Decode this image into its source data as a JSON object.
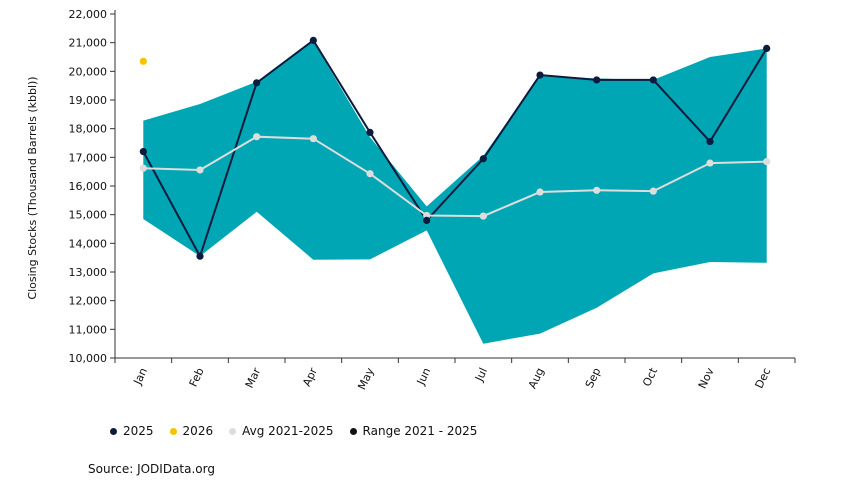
{
  "chart_data": {
    "type": "line",
    "title": "",
    "ylabel": "Closing Stocks (Thousand Barrels (kbbl))",
    "xlabel": "",
    "ylim": [
      10000,
      22000
    ],
    "yticks": [
      10000,
      11000,
      12000,
      13000,
      14000,
      15000,
      16000,
      17000,
      18000,
      19000,
      20000,
      21000,
      22000
    ],
    "ytick_labels": [
      "10,000",
      "11,000",
      "12,000",
      "13,000",
      "14,000",
      "15,000",
      "16,000",
      "17,000",
      "18,000",
      "19,000",
      "20,000",
      "21,000",
      "22,000"
    ],
    "categories": [
      "Jan",
      "Feb",
      "Mar",
      "Apr",
      "May",
      "Jun",
      "Jul",
      "Aug",
      "Sep",
      "Oct",
      "Nov",
      "Dec"
    ],
    "range": {
      "name": "Range 2021 - 2025",
      "min": [
        14850,
        13550,
        15100,
        13430,
        13440,
        14450,
        10500,
        10850,
        11750,
        12950,
        13350,
        13320
      ],
      "max": [
        18280,
        18860,
        19640,
        21050,
        17700,
        15290,
        17050,
        19850,
        19750,
        19700,
        20500,
        20800
      ]
    },
    "series": [
      {
        "name": "2025",
        "values": [
          17200,
          13550,
          19600,
          21080,
          17870,
          14800,
          16950,
          19870,
          19700,
          19700,
          17550,
          20800
        ]
      },
      {
        "name": "2026",
        "values": [
          20350,
          null,
          null,
          null,
          null,
          null,
          null,
          null,
          null,
          null,
          null,
          null
        ]
      },
      {
        "name": "Avg 2021-2025",
        "values": [
          16620,
          16560,
          17720,
          17650,
          16430,
          14970,
          14950,
          15790,
          15850,
          15820,
          16800,
          16850
        ]
      }
    ],
    "legend": [
      "2025",
      "2026",
      "Avg 2021-2025",
      "Range 2021 - 2025"
    ],
    "colors": {
      "range": "#00a6b4",
      "s2025": "#0d1b3e",
      "s2026": "#f5c400",
      "avg": "#dddddd",
      "range_legend": "#111111",
      "axis": "#333333"
    }
  },
  "source": "Source: JODIData.org"
}
